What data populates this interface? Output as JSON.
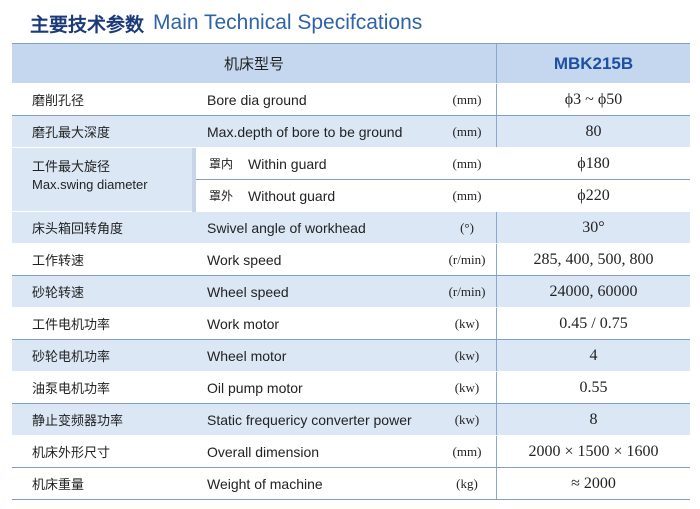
{
  "title": {
    "cn": "主要技术参数",
    "en": "Main Technical Specifcations"
  },
  "header": {
    "label": "机床型号",
    "model": "MBK215B"
  },
  "rows": [
    {
      "cn": "磨削孔径",
      "en": "Bore dia ground",
      "unit": "(mm)",
      "value": "ϕ3 ~ ϕ50"
    },
    {
      "cn": "磨孔最大深度",
      "en": "Max.depth of bore to be ground",
      "unit": "(mm)",
      "value": "80"
    }
  ],
  "swing": {
    "cn": "工件最大旋径",
    "en": "Max.swing diameter",
    "within": {
      "cn": "罩内",
      "en": "Within guard",
      "unit": "(mm)",
      "value": "ϕ180"
    },
    "without": {
      "cn": "罩外",
      "en": "Without guard",
      "unit": "(mm)",
      "value": "ϕ220"
    }
  },
  "rows2": [
    {
      "cn": "床头箱回转角度",
      "en": "Swivel angle of workhead",
      "unit": "(°)",
      "value": "30°"
    },
    {
      "cn": "工作转速",
      "en": "Work speed",
      "unit": "(r/min)",
      "value": "285, 400, 500, 800"
    },
    {
      "cn": "砂轮转速",
      "en": "Wheel speed",
      "unit": "(r/min)",
      "value": "24000, 60000"
    },
    {
      "cn": "工件电机功率",
      "en": "Work motor",
      "unit": "(kw)",
      "value": "0.45 / 0.75"
    },
    {
      "cn": "砂轮电机功率",
      "en": "Wheel motor",
      "unit": "(kw)",
      "value": "4"
    },
    {
      "cn": "油泵电机功率",
      "en": "Oil pump motor",
      "unit": "(kw)",
      "value": "0.55"
    },
    {
      "cn": "静止变频器功率",
      "en": "Static frequericy converter power",
      "unit": "(kw)",
      "value": "8"
    },
    {
      "cn": "机床外形尺寸",
      "en": "Overall dimension",
      "unit": "(mm)",
      "value": "2000 × 1500 × 1600"
    },
    {
      "cn": "机床重量",
      "en": "Weight of machine",
      "unit": "(kg)",
      "value": "≈ 2000"
    }
  ],
  "colors": {
    "title_cn": "#1c3a7a",
    "title_en": "#2f62a9",
    "header_bg": "#c5d7ef",
    "row_blue": "#dbe7f5",
    "model": "#1e4fa3"
  }
}
